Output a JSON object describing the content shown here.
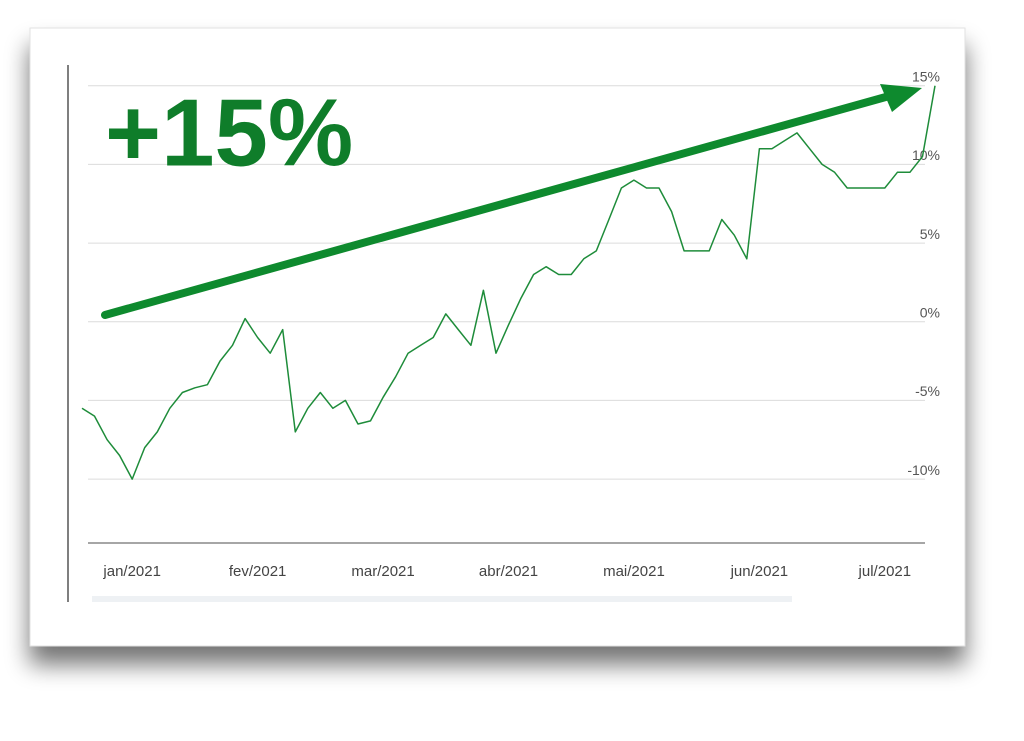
{
  "chart_data": {
    "type": "line",
    "annotation": "+15%",
    "categories": [
      null,
      null,
      null,
      null,
      "jan/2021",
      null,
      null,
      null,
      null,
      null,
      null,
      null,
      null,
      null,
      "fev/2021",
      null,
      null,
      null,
      null,
      null,
      null,
      null,
      null,
      null,
      "mar/2021",
      null,
      null,
      null,
      null,
      null,
      null,
      null,
      null,
      null,
      "abr/2021",
      null,
      null,
      null,
      null,
      null,
      null,
      null,
      null,
      null,
      "mai/2021",
      null,
      null,
      null,
      null,
      null,
      null,
      null,
      null,
      null,
      "jun/2021",
      null,
      null,
      null,
      null,
      null,
      null,
      null,
      null,
      null,
      "jul/2021",
      null,
      null,
      null,
      null
    ],
    "series": [
      {
        "color": "#1e8c3a",
        "values": [
          -5.5,
          -6,
          -7.5,
          -8.5,
          -10,
          -8,
          -7,
          -5.5,
          -4.5,
          -4.2,
          -4,
          -2.5,
          -1.5,
          0.2,
          -1,
          -2,
          -0.5,
          -7,
          -5.5,
          -4.5,
          -5.5,
          -5,
          -6.5,
          -6.3,
          -4.8,
          -3.5,
          -2,
          -1.5,
          -1,
          0.5,
          -0.5,
          -1.5,
          2,
          -2,
          -0.2,
          1.5,
          3,
          3.5,
          3,
          3,
          4,
          4.5,
          6.5,
          8.5,
          9,
          8.5,
          8.5,
          7,
          4.5,
          4.5,
          4.5,
          6.5,
          5.5,
          4,
          11,
          11,
          11.5,
          12,
          11,
          10,
          9.5,
          8.5,
          8.5,
          8.5,
          8.5,
          9.5,
          9.5,
          10.5,
          15
        ]
      }
    ],
    "ylim": [
      -14,
      16
    ],
    "yticks": [
      {
        "value": 15,
        "label": "15%"
      },
      {
        "value": 10,
        "label": "10%"
      },
      {
        "value": 5,
        "label": "5%"
      },
      {
        "value": 0,
        "label": "0%"
      },
      {
        "value": -5,
        "label": "-5%"
      },
      {
        "value": -10,
        "label": "-10%"
      }
    ],
    "grid": true
  }
}
